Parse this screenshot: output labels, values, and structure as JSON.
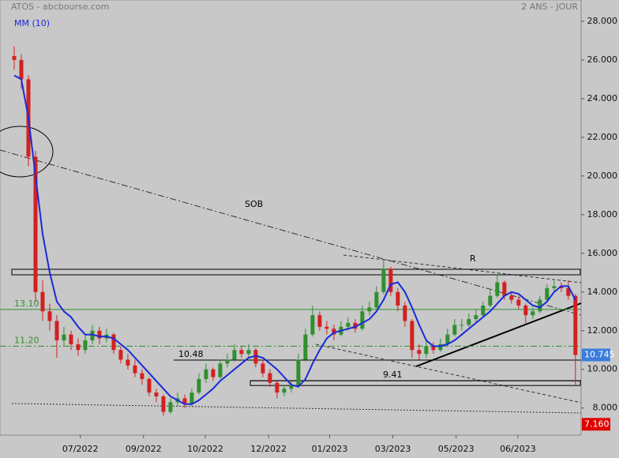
{
  "chart_data": {
    "type": "candlestick",
    "title": "ATOS - abcbourse.com",
    "period": "2 ANS - JOUR",
    "ma_name": "MM (10)",
    "annotations": [
      "SOB",
      "R"
    ],
    "up_color": "#2f8f2f",
    "down_color": "#d42020",
    "ma_color": "#1a2ad8",
    "xlim": [
      -2,
      79.8
    ],
    "ylim": [
      6.6,
      29.1
    ],
    "xticks": [
      {
        "value": 9.3,
        "label": "07/2022"
      },
      {
        "value": 18.2,
        "label": "09/2022"
      },
      {
        "value": 26.9,
        "label": "10/2022"
      },
      {
        "value": 35.8,
        "label": "12/2022"
      },
      {
        "value": 44.4,
        "label": "01/2023"
      },
      {
        "value": 53.3,
        "label": "03/2023"
      },
      {
        "value": 62.2,
        "label": "05/2023"
      },
      {
        "value": 70.9,
        "label": "06/2023"
      }
    ],
    "yticks": [
      {
        "value": 8,
        "label": "8.000"
      },
      {
        "value": 10,
        "label": "10.000"
      },
      {
        "value": 12,
        "label": "12.000"
      },
      {
        "value": 14,
        "label": "14.000"
      },
      {
        "value": 16,
        "label": "16.000"
      },
      {
        "value": 18,
        "label": "18.000"
      },
      {
        "value": 20,
        "label": "20.000"
      },
      {
        "value": 22,
        "label": "22.000"
      },
      {
        "value": 24,
        "label": "24.000"
      },
      {
        "value": 26,
        "label": "26.000"
      },
      {
        "value": 28,
        "label": "28.000"
      }
    ],
    "levels": [
      {
        "value": 13.1,
        "label": "13.10"
      },
      {
        "value": 11.2,
        "label": "11.20"
      },
      {
        "value": 10.48,
        "label": "10.48"
      },
      {
        "value": 9.41,
        "label": "9.41"
      }
    ],
    "price_tags": [
      {
        "value": 10.745,
        "label": "10.745",
        "color": "#3b7ddd"
      },
      {
        "value": 7.16,
        "label": "7.160",
        "color": "#e00000"
      }
    ],
    "candles": [
      [
        26.2,
        26.7,
        25.5,
        26.0
      ],
      [
        26.0,
        26.3,
        24.5,
        25.0
      ],
      [
        25.0,
        25.2,
        20.5,
        21.0
      ],
      [
        21.0,
        21.3,
        13.5,
        14.0
      ],
      [
        14.0,
        14.6,
        12.5,
        13.0
      ],
      [
        13.0,
        13.4,
        12.0,
        12.5
      ],
      [
        12.5,
        12.8,
        10.6,
        11.5
      ],
      [
        11.5,
        12.2,
        11.2,
        11.8
      ],
      [
        11.8,
        12.0,
        11.0,
        11.3
      ],
      [
        11.3,
        11.6,
        10.7,
        11.0
      ],
      [
        11.0,
        11.8,
        10.8,
        11.5
      ],
      [
        11.5,
        12.3,
        11.3,
        12.0
      ],
      [
        12.0,
        12.2,
        11.3,
        11.6
      ],
      [
        11.6,
        12.1,
        11.4,
        11.8
      ],
      [
        11.8,
        11.9,
        10.8,
        11.0
      ],
      [
        11.0,
        11.2,
        10.3,
        10.5
      ],
      [
        10.5,
        10.8,
        10.0,
        10.2
      ],
      [
        10.2,
        10.5,
        9.6,
        9.8
      ],
      [
        9.8,
        10.0,
        9.2,
        9.5
      ],
      [
        9.5,
        9.6,
        8.6,
        8.8
      ],
      [
        8.8,
        9.0,
        8.3,
        8.6
      ],
      [
        8.6,
        8.7,
        7.6,
        7.8
      ],
      [
        7.8,
        8.5,
        7.7,
        8.3
      ],
      [
        8.3,
        8.8,
        8.1,
        8.5
      ],
      [
        8.5,
        8.7,
        8.0,
        8.2
      ],
      [
        8.2,
        9.0,
        8.1,
        8.8
      ],
      [
        8.8,
        9.8,
        8.7,
        9.5
      ],
      [
        9.5,
        10.3,
        9.3,
        10.0
      ],
      [
        10.0,
        10.1,
        9.4,
        9.6
      ],
      [
        9.6,
        10.5,
        9.5,
        10.3
      ],
      [
        10.3,
        10.8,
        10.1,
        10.5
      ],
      [
        10.5,
        11.3,
        10.4,
        11.0
      ],
      [
        11.0,
        11.2,
        10.6,
        10.8
      ],
      [
        10.8,
        11.3,
        10.6,
        11.0
      ],
      [
        11.0,
        11.1,
        10.1,
        10.3
      ],
      [
        10.3,
        10.5,
        9.6,
        9.8
      ],
      [
        9.8,
        10.0,
        9.1,
        9.3
      ],
      [
        9.3,
        9.4,
        8.5,
        8.8
      ],
      [
        8.8,
        9.2,
        8.6,
        9.0
      ],
      [
        9.0,
        9.4,
        8.8,
        9.2
      ],
      [
        9.2,
        10.8,
        9.1,
        10.5
      ],
      [
        10.5,
        12.1,
        10.4,
        11.8
      ],
      [
        11.8,
        13.3,
        11.7,
        12.8
      ],
      [
        12.8,
        13.0,
        12.0,
        12.2
      ],
      [
        12.2,
        12.5,
        11.8,
        12.1
      ],
      [
        12.1,
        12.3,
        11.5,
        11.8
      ],
      [
        11.8,
        12.5,
        11.7,
        12.2
      ],
      [
        12.2,
        12.7,
        12.0,
        12.4
      ],
      [
        12.4,
        12.6,
        11.9,
        12.1
      ],
      [
        12.1,
        13.3,
        12.0,
        13.0
      ],
      [
        13.0,
        13.5,
        12.8,
        13.2
      ],
      [
        13.2,
        14.3,
        13.1,
        14.0
      ],
      [
        14.0,
        15.7,
        13.9,
        15.2
      ],
      [
        15.2,
        15.3,
        13.8,
        14.0
      ],
      [
        14.0,
        14.2,
        13.0,
        13.3
      ],
      [
        13.3,
        13.5,
        12.2,
        12.5
      ],
      [
        12.5,
        12.6,
        10.6,
        11.0
      ],
      [
        11.0,
        11.3,
        10.5,
        10.8
      ],
      [
        10.8,
        11.5,
        10.6,
        11.2
      ],
      [
        11.2,
        11.4,
        10.8,
        11.0
      ],
      [
        11.0,
        11.6,
        10.9,
        11.3
      ],
      [
        11.3,
        12.1,
        11.2,
        11.8
      ],
      [
        11.8,
        12.6,
        11.7,
        12.3
      ],
      [
        12.3,
        12.6,
        12.0,
        12.3
      ],
      [
        12.3,
        12.9,
        12.2,
        12.6
      ],
      [
        12.6,
        13.1,
        12.4,
        12.8
      ],
      [
        12.8,
        13.5,
        12.7,
        13.3
      ],
      [
        13.3,
        14.1,
        13.2,
        13.8
      ],
      [
        13.8,
        14.9,
        13.7,
        14.5
      ],
      [
        14.5,
        14.6,
        13.6,
        13.8
      ],
      [
        13.8,
        14.0,
        13.4,
        13.6
      ],
      [
        13.6,
        13.8,
        13.1,
        13.3
      ],
      [
        13.3,
        13.4,
        12.4,
        12.8
      ],
      [
        12.8,
        13.2,
        12.6,
        13.0
      ],
      [
        13.0,
        13.8,
        12.9,
        13.6
      ],
      [
        13.6,
        14.4,
        13.5,
        14.2
      ],
      [
        14.2,
        14.6,
        14.0,
        14.3
      ],
      [
        14.3,
        14.5,
        14.0,
        14.2
      ],
      [
        14.2,
        14.6,
        13.6,
        13.8
      ],
      [
        13.8,
        13.9,
        9.2,
        10.745
      ]
    ],
    "ma": [
      25.2,
      25,
      23,
      20,
      17,
      15,
      13.5,
      13,
      12.7,
      12.2,
      11.8,
      11.8,
      11.7,
      11.7,
      11.6,
      11.3,
      11,
      10.6,
      10.2,
      9.8,
      9.4,
      9,
      8.6,
      8.4,
      8.2,
      8.2,
      8.4,
      8.7,
      9,
      9.4,
      9.7,
      10,
      10.3,
      10.6,
      10.7,
      10.6,
      10.3,
      10,
      9.6,
      9.2,
      9.1,
      9.5,
      10.3,
      11,
      11.6,
      11.9,
      12,
      12.1,
      12.2,
      12.4,
      12.6,
      13,
      13.6,
      14.4,
      14.5,
      14,
      13.2,
      12.3,
      11.5,
      11.2,
      11.2,
      11.3,
      11.5,
      11.8,
      12.1,
      12.4,
      12.7,
      13,
      13.4,
      13.8,
      14,
      13.9,
      13.6,
      13.3,
      13.2,
      13.5,
      14,
      14.3,
      14.3,
      13.6
    ]
  }
}
